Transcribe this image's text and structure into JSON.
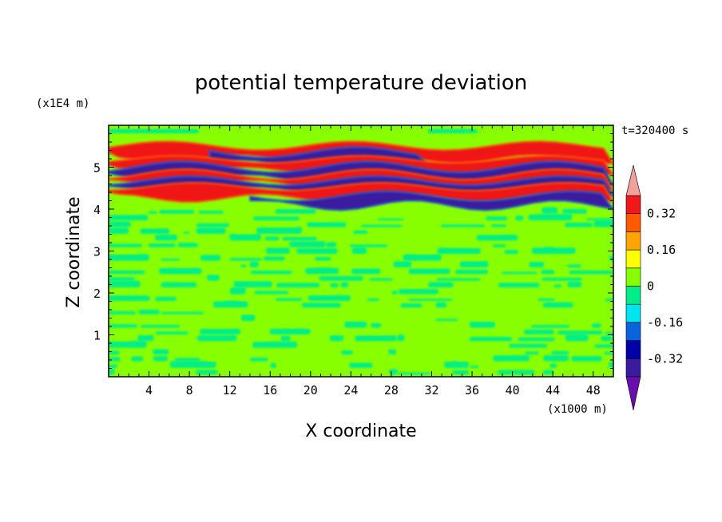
{
  "chart_data": {
    "type": "heatmap",
    "title": "potential temperature deviation",
    "xlabel": "X coordinate",
    "ylabel": "Z coordinate",
    "x_unit": "(x1000 m)",
    "y_unit": "(x1E4 m)",
    "time_label": "t=320400 s",
    "xlim": [
      0,
      50
    ],
    "ylim": [
      0,
      6
    ],
    "x_ticks": [
      4,
      8,
      12,
      16,
      20,
      24,
      28,
      32,
      36,
      40,
      44,
      48
    ],
    "y_ticks": [
      1,
      2,
      3,
      4,
      5
    ],
    "colorbar": {
      "labels": [
        "0.32",
        "0.16",
        "0",
        "-0.16",
        "-0.32"
      ],
      "label_levels": [
        0.32,
        0.16,
        0,
        -0.16,
        -0.32
      ],
      "levels": [
        -0.4,
        -0.32,
        -0.24,
        -0.16,
        -0.08,
        0,
        0.08,
        0.16,
        0.24,
        0.32,
        0.4
      ],
      "colors": [
        "#6a0dad",
        "#3a1a9e",
        "#0000a8",
        "#0a64dc",
        "#00e5f0",
        "#00ee88",
        "#88ff00",
        "#ffff00",
        "#ffa500",
        "#ff5a00",
        "#f01818",
        "#f4a09a"
      ]
    },
    "fields": {
      "background_level": 0.04,
      "upper_background_level": 0.04,
      "lower_layer_level": -0.05,
      "bands": [
        {
          "z": 5.35,
          "x0": 0,
          "x1": 50,
          "level": 0.35
        },
        {
          "z": 5.2,
          "x0": 10,
          "x1": 32,
          "level": -0.36
        },
        {
          "z": 5.05,
          "x0": 0,
          "x1": 50,
          "level": 0.35
        },
        {
          "z": 4.85,
          "x0": 0,
          "x1": 50,
          "level": -0.36
        },
        {
          "z": 4.7,
          "x0": 0,
          "x1": 50,
          "level": 0.35
        },
        {
          "z": 4.55,
          "x0": 0,
          "x1": 50,
          "level": -0.36
        },
        {
          "z": 4.4,
          "x0": 0,
          "x1": 50,
          "level": 0.35
        },
        {
          "z": 4.2,
          "x0": 14,
          "x1": 50,
          "level": -0.36
        }
      ]
    }
  }
}
